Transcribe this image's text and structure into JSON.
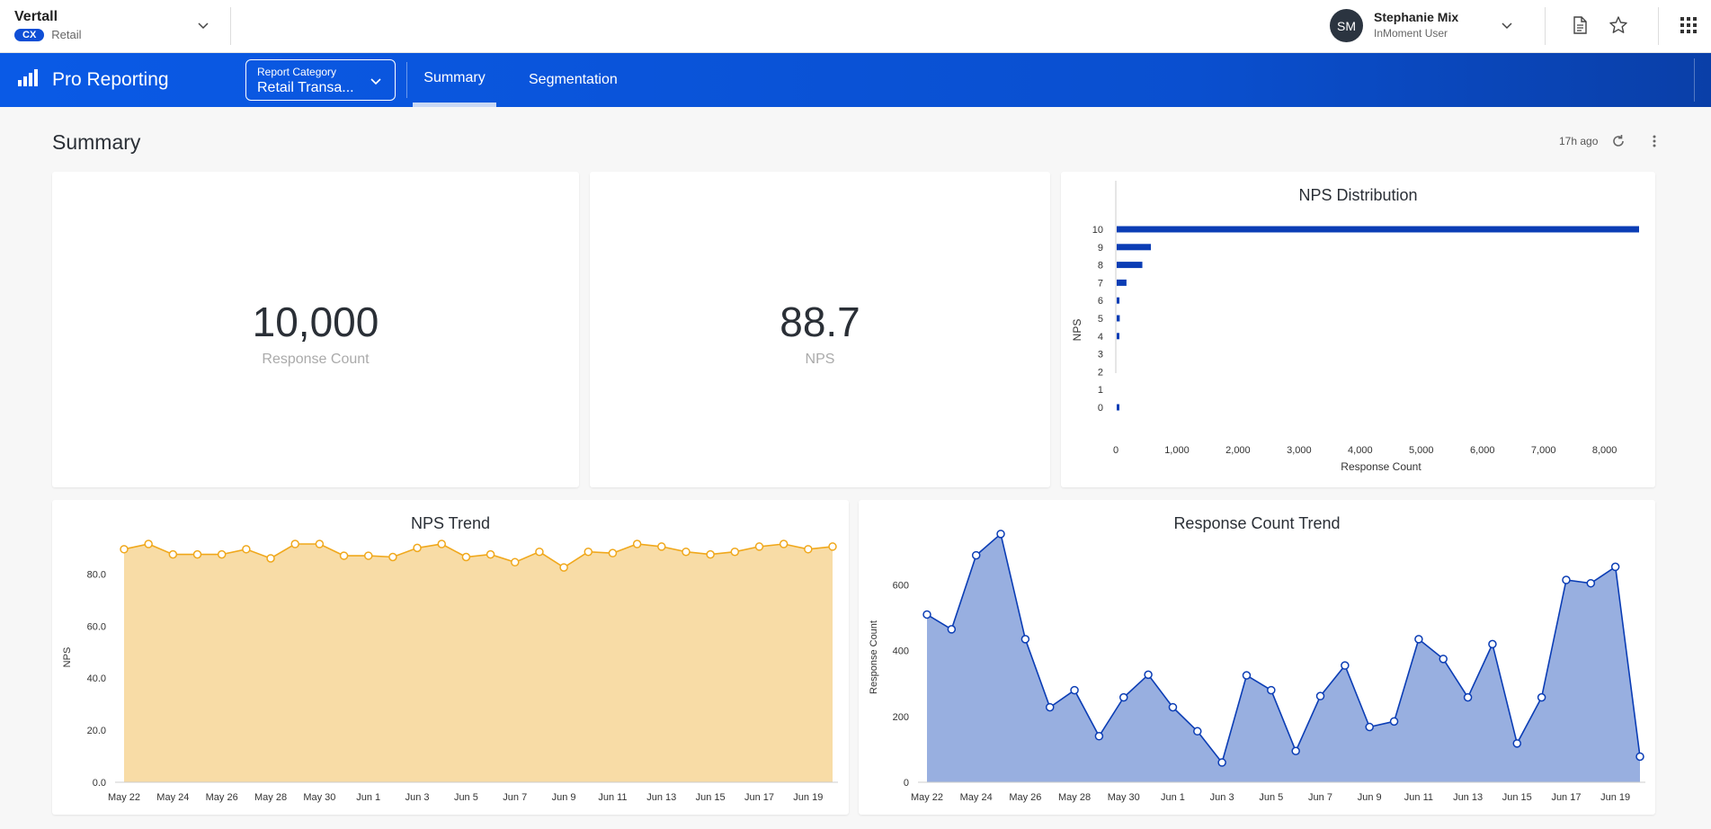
{
  "org": {
    "name": "Vertall",
    "badge": "CX",
    "sub": "Retail"
  },
  "user": {
    "initials": "SM",
    "name": "Stephanie Mix",
    "role": "InMoment User"
  },
  "nav": {
    "title": "Pro Reporting",
    "report_category_label": "Report Category",
    "report_category_value": "Retail Transa...",
    "tabs": [
      {
        "label": "Summary",
        "active": true
      },
      {
        "label": "Segmentation",
        "active": false
      }
    ]
  },
  "page": {
    "title": "Summary",
    "updated": "17h ago"
  },
  "kpis": {
    "response_count": {
      "value": "10,000",
      "label": "Response Count"
    },
    "nps": {
      "value": "88.7",
      "label": "NPS"
    }
  },
  "chart_data": [
    {
      "id": "nps-distribution",
      "type": "bar",
      "orientation": "horizontal",
      "title": "NPS Distribution",
      "xlabel": "Response Count",
      "ylabel": "NPS",
      "categories": [
        "0",
        "1",
        "2",
        "3",
        "4",
        "5",
        "6",
        "7",
        "8",
        "9",
        "10"
      ],
      "values": [
        40,
        0,
        0,
        0,
        15,
        50,
        45,
        160,
        420,
        560,
        8550
      ],
      "xlim": [
        0,
        8550
      ],
      "xticks": [
        0,
        1000,
        2000,
        3000,
        4000,
        5000,
        6000,
        7000,
        8000
      ],
      "xtick_labels": [
        "0",
        "1,000",
        "2,000",
        "3,000",
        "4,000",
        "5,000",
        "6,000",
        "7,000",
        "8,000"
      ],
      "color": "#0b3db5"
    },
    {
      "id": "nps-trend",
      "type": "area",
      "title": "NPS Trend",
      "xlabel": "",
      "ylabel": "NPS",
      "x": [
        "May 22",
        "May 23",
        "May 24",
        "May 25",
        "May 26",
        "May 27",
        "May 28",
        "May 29",
        "May 30",
        "May 31",
        "Jun 1",
        "Jun 2",
        "Jun 3",
        "Jun 4",
        "Jun 5",
        "Jun 6",
        "Jun 7",
        "Jun 8",
        "Jun 9",
        "Jun 10",
        "Jun 11",
        "Jun 12",
        "Jun 13",
        "Jun 14",
        "Jun 15",
        "Jun 16",
        "Jun 17",
        "Jun 18",
        "Jun 19",
        "Jun 20"
      ],
      "values": [
        89.5,
        91.5,
        87.5,
        87.5,
        87.5,
        89.5,
        86,
        91.5,
        91.5,
        87,
        87,
        86.5,
        90,
        91.5,
        86.5,
        87.5,
        84.5,
        88.5,
        82.5,
        88.5,
        88,
        91.5,
        90.5,
        88.5,
        87.5,
        88.5,
        90.5,
        91.5,
        89.5,
        90.5
      ],
      "ylim": [
        0,
        96
      ],
      "yticks": [
        0,
        20,
        40,
        60,
        80
      ],
      "ytick_labels": [
        "0.0",
        "20.0",
        "40.0",
        "60.0",
        "80.0"
      ],
      "xtick_labels": [
        "May 22",
        "May 24",
        "May 26",
        "May 28",
        "May 30",
        "Jun 1",
        "Jun 3",
        "Jun 5",
        "Jun 7",
        "Jun 9",
        "Jun 11",
        "Jun 13",
        "Jun 15",
        "Jun 17",
        "Jun 19"
      ],
      "line_color": "#f0a81c",
      "fill_color": "#f8dca6"
    },
    {
      "id": "response-count-trend",
      "type": "area",
      "title": "Response Count Trend",
      "xlabel": "",
      "ylabel": "Response Count",
      "x": [
        "May 22",
        "May 23",
        "May 24",
        "May 25",
        "May 26",
        "May 27",
        "May 28",
        "May 29",
        "May 30",
        "May 31",
        "Jun 1",
        "Jun 2",
        "Jun 3",
        "Jun 4",
        "Jun 5",
        "Jun 6",
        "Jun 7",
        "Jun 8",
        "Jun 9",
        "Jun 10",
        "Jun 11",
        "Jun 12",
        "Jun 13",
        "Jun 14",
        "Jun 15",
        "Jun 16",
        "Jun 17",
        "Jun 18",
        "Jun 19",
        "Jun 20"
      ],
      "values": [
        510,
        465,
        690,
        755,
        435,
        228,
        280,
        140,
        258,
        327,
        228,
        155,
        60,
        325,
        280,
        95,
        262,
        355,
        168,
        185,
        435,
        375,
        258,
        420,
        118,
        258,
        615,
        605,
        655,
        78
      ],
      "ylim": [
        0,
        760
      ],
      "yticks": [
        0,
        200,
        400,
        600
      ],
      "ytick_labels": [
        "0",
        "200",
        "400",
        "600"
      ],
      "xtick_labels": [
        "May 22",
        "May 24",
        "May 26",
        "May 28",
        "May 30",
        "Jun 1",
        "Jun 3",
        "Jun 5",
        "Jun 7",
        "Jun 9",
        "Jun 11",
        "Jun 13",
        "Jun 15",
        "Jun 17",
        "Jun 19"
      ],
      "line_color": "#0b3db5",
      "fill_color": "#98afe0"
    }
  ],
  "icons": {
    "org_chevron": "chevron-down-icon",
    "user_chevron": "chevron-down-icon",
    "document": "document-icon",
    "favorite": "star-icon",
    "apps": "grid-icon",
    "logo": "bar-chart-logo-icon",
    "refresh": "refresh-icon",
    "more": "more-vertical-icon"
  }
}
